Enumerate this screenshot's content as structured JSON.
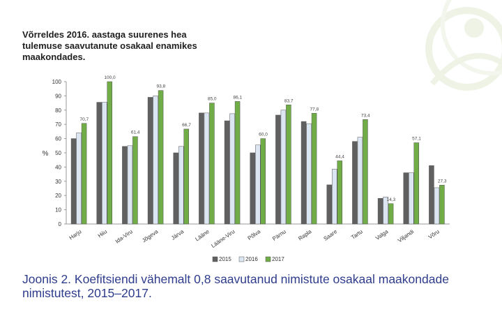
{
  "headline": "Võrreldes 2016. aastaga suurenes hea tulemuse saavutanute osakaal enamikes maakondades.",
  "caption_prefix": "Joonis 2.",
  "caption_text": "Koefitsiendi vähemalt 0,8 saavutanud nimistute osakaal maakondade nimistutest, 2015–2017.",
  "colors": {
    "accent_green": "#7fbf3f",
    "caption_blue": "#2e3c8c"
  },
  "chart_data": {
    "type": "bar",
    "ylabel": "%",
    "ylim": [
      0,
      100
    ],
    "yticks": [
      0,
      10,
      20,
      30,
      40,
      50,
      60,
      70,
      80,
      90,
      100
    ],
    "grid": false,
    "legend_position": "bottom",
    "categories": [
      "Harju",
      "Hiiu",
      "Ida-Viru",
      "Jõgeva",
      "Järva",
      "Lääne",
      "Lääne-Viru",
      "Põlva",
      "Pärnu",
      "Rapla",
      "Saare",
      "Tartu",
      "Valga",
      "Viljandi",
      "Võru"
    ],
    "series": [
      {
        "name": "2015",
        "color": "#606060",
        "values": [
          60,
          85.5,
          54.5,
          89,
          50,
          78,
          72.5,
          50,
          76.5,
          72,
          27.5,
          58,
          18,
          36,
          41
        ]
      },
      {
        "name": "2016",
        "color": "#dce6f2",
        "values": [
          64,
          85.5,
          55,
          90,
          54.5,
          78,
          77.5,
          55.5,
          80,
          70.5,
          38.5,
          61,
          19,
          36,
          25.5
        ]
      },
      {
        "name": "2017",
        "color": "#70ad47",
        "values": [
          70.7,
          100,
          61.4,
          93.8,
          66.7,
          85,
          86.1,
          60,
          83.7,
          77.8,
          44.4,
          73.4,
          14.3,
          57.1,
          27.3
        ]
      }
    ],
    "data_labels": [
      "70,7",
      "100,0",
      "61,4",
      "93,8",
      "66,7",
      "85,0",
      "86,1",
      "60,0",
      "83,7",
      "77,8",
      "44,4",
      "73,4",
      "14,3",
      "57,1",
      "27,3"
    ]
  }
}
